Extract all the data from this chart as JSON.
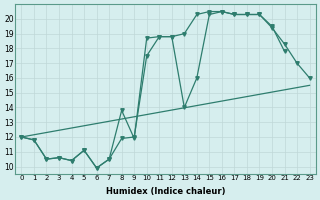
{
  "xlabel": "Humidex (Indice chaleur)",
  "xlim": [
    -0.5,
    23.5
  ],
  "ylim": [
    9.5,
    21
  ],
  "yticks": [
    10,
    11,
    12,
    13,
    14,
    15,
    16,
    17,
    18,
    19,
    20
  ],
  "xticks": [
    0,
    1,
    2,
    3,
    4,
    5,
    6,
    7,
    8,
    9,
    10,
    11,
    12,
    13,
    14,
    15,
    16,
    17,
    18,
    19,
    20,
    21,
    22,
    23
  ],
  "bg_color": "#d6eeee",
  "grid_color": "#c0d8d8",
  "line_color": "#2e7d6e",
  "line1_x": [
    0,
    1,
    2,
    3,
    4,
    5,
    6,
    7,
    8,
    9,
    10,
    11,
    12,
    13,
    14,
    15,
    16,
    17,
    18,
    19,
    20,
    21,
    22,
    23
  ],
  "line1_y": [
    12.0,
    11.8,
    10.5,
    10.6,
    10.4,
    11.1,
    9.9,
    10.5,
    11.9,
    12.0,
    17.5,
    18.8,
    18.8,
    14.0,
    16.0,
    20.3,
    20.5,
    20.3,
    20.3,
    20.3,
    19.4,
    18.3,
    17.0,
    16.0
  ],
  "line2_x": [
    0,
    1,
    2,
    3,
    4,
    5,
    6,
    7,
    8,
    9,
    10,
    11,
    12,
    13,
    14,
    15,
    16,
    17,
    18,
    19,
    20,
    21
  ],
  "line2_y": [
    12.0,
    11.8,
    10.5,
    10.6,
    10.4,
    11.1,
    9.9,
    10.5,
    13.8,
    11.9,
    18.7,
    18.8,
    18.8,
    19.0,
    20.3,
    20.5,
    20.5,
    20.3,
    20.3,
    20.3,
    19.5,
    17.8
  ],
  "line3_x": [
    0,
    23
  ],
  "line3_y": [
    12.0,
    15.5
  ]
}
